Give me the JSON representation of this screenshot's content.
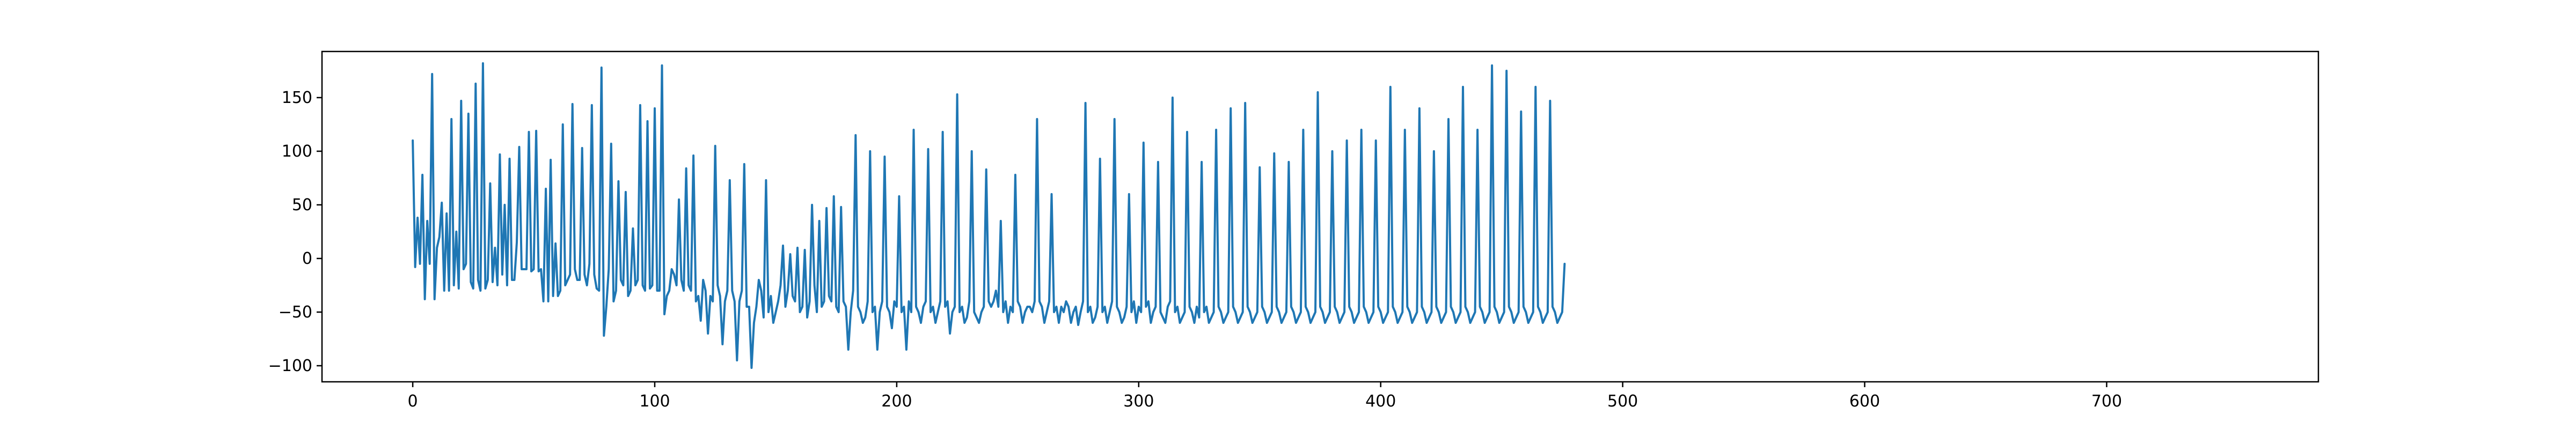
{
  "chart_data": {
    "type": "line",
    "title": "",
    "xlabel": "",
    "ylabel": "",
    "xlim": [
      -37.5,
      787.5
    ],
    "ylim": [
      -115,
      193
    ],
    "x_ticks": [
      0,
      100,
      200,
      300,
      400,
      500,
      600,
      700
    ],
    "x_tick_labels": [
      "0",
      "100",
      "200",
      "300",
      "400",
      "500",
      "600",
      "700"
    ],
    "y_ticks": [
      -100,
      -50,
      0,
      50,
      100,
      150
    ],
    "y_tick_labels": [
      "−100",
      "−50",
      "0",
      "50",
      "100",
      "150"
    ],
    "grid": false,
    "legend": "none",
    "colors": {
      "series": "#1f77b4",
      "axes": "#000000",
      "background": "#ffffff"
    },
    "series": [
      {
        "x_start": 0,
        "x_step": 1,
        "values": [
          110,
          -8,
          38,
          -5,
          78,
          -38,
          35,
          -5,
          172,
          -38,
          10,
          20,
          52,
          -30,
          42,
          -30,
          130,
          -25,
          25,
          -28,
          147,
          -10,
          -5,
          135,
          -22,
          -28,
          163,
          -20,
          -30,
          182,
          -28,
          -20,
          70,
          -22,
          10,
          -25,
          97,
          -15,
          50,
          -25,
          93,
          -20,
          -20,
          15,
          104,
          -10,
          -10,
          -10,
          118,
          -12,
          -10,
          119,
          -12,
          -10,
          -40,
          65,
          -40,
          92,
          -35,
          14,
          -35,
          -30,
          125,
          -25,
          -20,
          -15,
          144,
          -10,
          -20,
          -20,
          103,
          -15,
          -25,
          -5,
          143,
          -15,
          -28,
          -30,
          178,
          -72,
          -45,
          -10,
          107,
          -40,
          -30,
          72,
          -20,
          -25,
          62,
          -35,
          -30,
          28,
          -25,
          -20,
          143,
          -25,
          -30,
          128,
          -28,
          -25,
          140,
          -30,
          -30,
          180,
          -52,
          -35,
          -30,
          -10,
          -15,
          -25,
          55,
          -20,
          -30,
          84,
          -25,
          -30,
          96,
          -40,
          -35,
          -58,
          -20,
          -30,
          -70,
          -35,
          -40,
          105,
          -25,
          -35,
          -80,
          -40,
          -30,
          73,
          -30,
          -40,
          -95,
          -40,
          -30,
          88,
          -45,
          -45,
          -102,
          -60,
          -45,
          -20,
          -30,
          -55,
          73,
          -50,
          -35,
          -60,
          -50,
          -40,
          -25,
          12,
          -45,
          -30,
          4,
          -35,
          -40,
          10,
          -50,
          -45,
          8,
          -55,
          -40,
          50,
          -25,
          -50,
          35,
          -45,
          -40,
          47,
          -35,
          -40,
          58,
          -45,
          -50,
          48,
          -40,
          -45,
          -85,
          -50,
          -30,
          115,
          -45,
          -50,
          -60,
          -55,
          -40,
          100,
          -50,
          -45,
          -85,
          -50,
          -40,
          95,
          -45,
          -50,
          -65,
          -40,
          -45,
          58,
          -50,
          -45,
          -85,
          -40,
          -50,
          120,
          -45,
          -50,
          -60,
          -45,
          -40,
          102,
          -50,
          -45,
          -60,
          -50,
          -40,
          118,
          -45,
          -40,
          -70,
          -50,
          -45,
          153,
          -50,
          -45,
          -60,
          -55,
          -40,
          100,
          -50,
          -55,
          -60,
          -50,
          -45,
          83,
          -40,
          -45,
          -40,
          -30,
          -45,
          35,
          -50,
          -40,
          -60,
          -45,
          -50,
          78,
          -40,
          -45,
          -60,
          -50,
          -45,
          -45,
          -50,
          -40,
          130,
          -40,
          -45,
          -60,
          -50,
          -40,
          60,
          -50,
          -45,
          -60,
          -45,
          -50,
          -40,
          -45,
          -60,
          -50,
          -45,
          -62,
          -50,
          -40,
          145,
          -50,
          -45,
          -60,
          -55,
          -45,
          93,
          -50,
          -45,
          -60,
          -50,
          -40,
          130,
          -45,
          -50,
          -60,
          -55,
          -45,
          60,
          -50,
          -40,
          -60,
          -45,
          -50,
          108,
          -45,
          -40,
          -60,
          -50,
          -45,
          90,
          -50,
          -55,
          -60,
          -45,
          -40,
          150,
          -50,
          -45,
          -60,
          -55,
          -50,
          118,
          -45,
          -50,
          -60,
          -45,
          -55,
          90,
          -50,
          -45,
          -60,
          -55,
          -50,
          120,
          -45,
          -50,
          -60,
          -55,
          -50,
          140,
          -45,
          -50,
          -60,
          -55,
          -50,
          145,
          -45,
          -50,
          -60,
          -55,
          -50,
          85,
          -45,
          -50,
          -60,
          -55,
          -50,
          98,
          -45,
          -50,
          -60,
          -55,
          -50,
          90,
          -45,
          -50,
          -60,
          -55,
          -50,
          120,
          -45,
          -50,
          -60,
          -55,
          -50,
          155,
          -45,
          -50,
          -60,
          -55,
          -50,
          100,
          -45,
          -50,
          -60,
          -55,
          -50,
          110,
          -45,
          -50,
          -60,
          -55,
          -50,
          120,
          -45,
          -50,
          -60,
          -55,
          -50,
          110,
          -45,
          -50,
          -60,
          -55,
          -50,
          160,
          -45,
          -50,
          -60,
          -55,
          -50,
          120,
          -45,
          -50,
          -60,
          -55,
          -50,
          140,
          -45,
          -50,
          -60,
          -55,
          -50,
          100,
          -45,
          -50,
          -60,
          -55,
          -50,
          130,
          -45,
          -50,
          -60,
          -55,
          -50,
          160,
          -45,
          -50,
          -60,
          -55,
          -50,
          120,
          -45,
          -50,
          -60,
          -55,
          -50,
          180,
          -45,
          -50,
          -60,
          -55,
          -50,
          175,
          -45,
          -50,
          -60,
          -55,
          -50,
          137,
          -45,
          -50,
          -60,
          -55,
          -50,
          160,
          -45,
          -50,
          -60,
          -55,
          -50,
          147,
          -45,
          -50,
          -60,
          -55,
          -50,
          -5
        ]
      }
    ]
  }
}
